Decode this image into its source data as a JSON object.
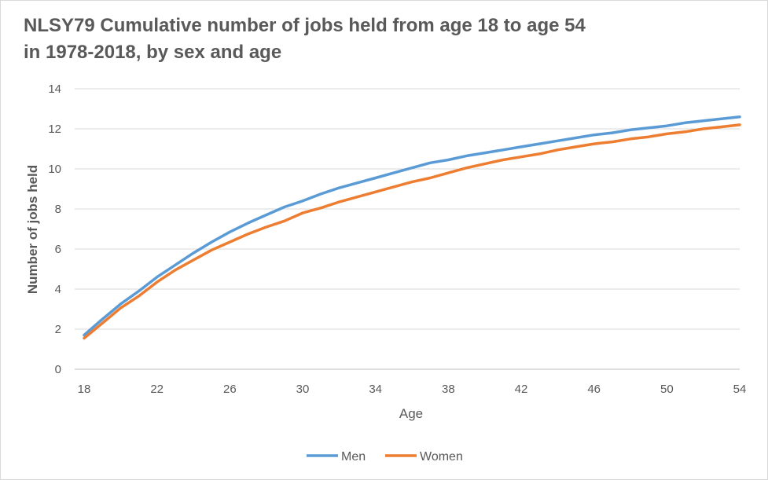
{
  "chart_data": {
    "type": "line",
    "title_line1": "NLSY79 Cumulative number of jobs held from age 18 to age 54",
    "title_line2": "in 1978-2018, by sex and age",
    "xlabel": "Age",
    "ylabel": "Number of jobs held",
    "xlim": [
      18,
      54
    ],
    "ylim": [
      0,
      14
    ],
    "x_ticks": [
      "18",
      "22",
      "26",
      "30",
      "34",
      "38",
      "42",
      "46",
      "50",
      "54"
    ],
    "y_ticks": [
      "0",
      "2",
      "4",
      "6",
      "8",
      "10",
      "12",
      "14"
    ],
    "grid": true,
    "legend_position": "bottom",
    "x": [
      18,
      19,
      20,
      21,
      22,
      23,
      24,
      25,
      26,
      27,
      28,
      29,
      30,
      31,
      32,
      33,
      34,
      35,
      36,
      37,
      38,
      39,
      40,
      41,
      42,
      43,
      44,
      45,
      46,
      47,
      48,
      49,
      50,
      51,
      52,
      53,
      54
    ],
    "series": [
      {
        "name": "Men",
        "color": "#5b9bd5",
        "values": [
          1.7,
          2.5,
          3.25,
          3.9,
          4.6,
          5.2,
          5.8,
          6.35,
          6.85,
          7.3,
          7.7,
          8.1,
          8.4,
          8.75,
          9.05,
          9.3,
          9.55,
          9.8,
          10.05,
          10.3,
          10.45,
          10.65,
          10.8,
          10.95,
          11.1,
          11.25,
          11.4,
          11.55,
          11.7,
          11.8,
          11.95,
          12.05,
          12.15,
          12.3,
          12.4,
          12.5,
          12.6
        ]
      },
      {
        "name": "Women",
        "color": "#ed7d31",
        "values": [
          1.55,
          2.3,
          3.05,
          3.65,
          4.35,
          4.95,
          5.45,
          5.95,
          6.35,
          6.75,
          7.1,
          7.4,
          7.8,
          8.05,
          8.35,
          8.6,
          8.85,
          9.1,
          9.35,
          9.55,
          9.8,
          10.05,
          10.25,
          10.45,
          10.6,
          10.75,
          10.95,
          11.1,
          11.25,
          11.35,
          11.5,
          11.6,
          11.75,
          11.85,
          12.0,
          12.1,
          12.2
        ]
      }
    ]
  }
}
